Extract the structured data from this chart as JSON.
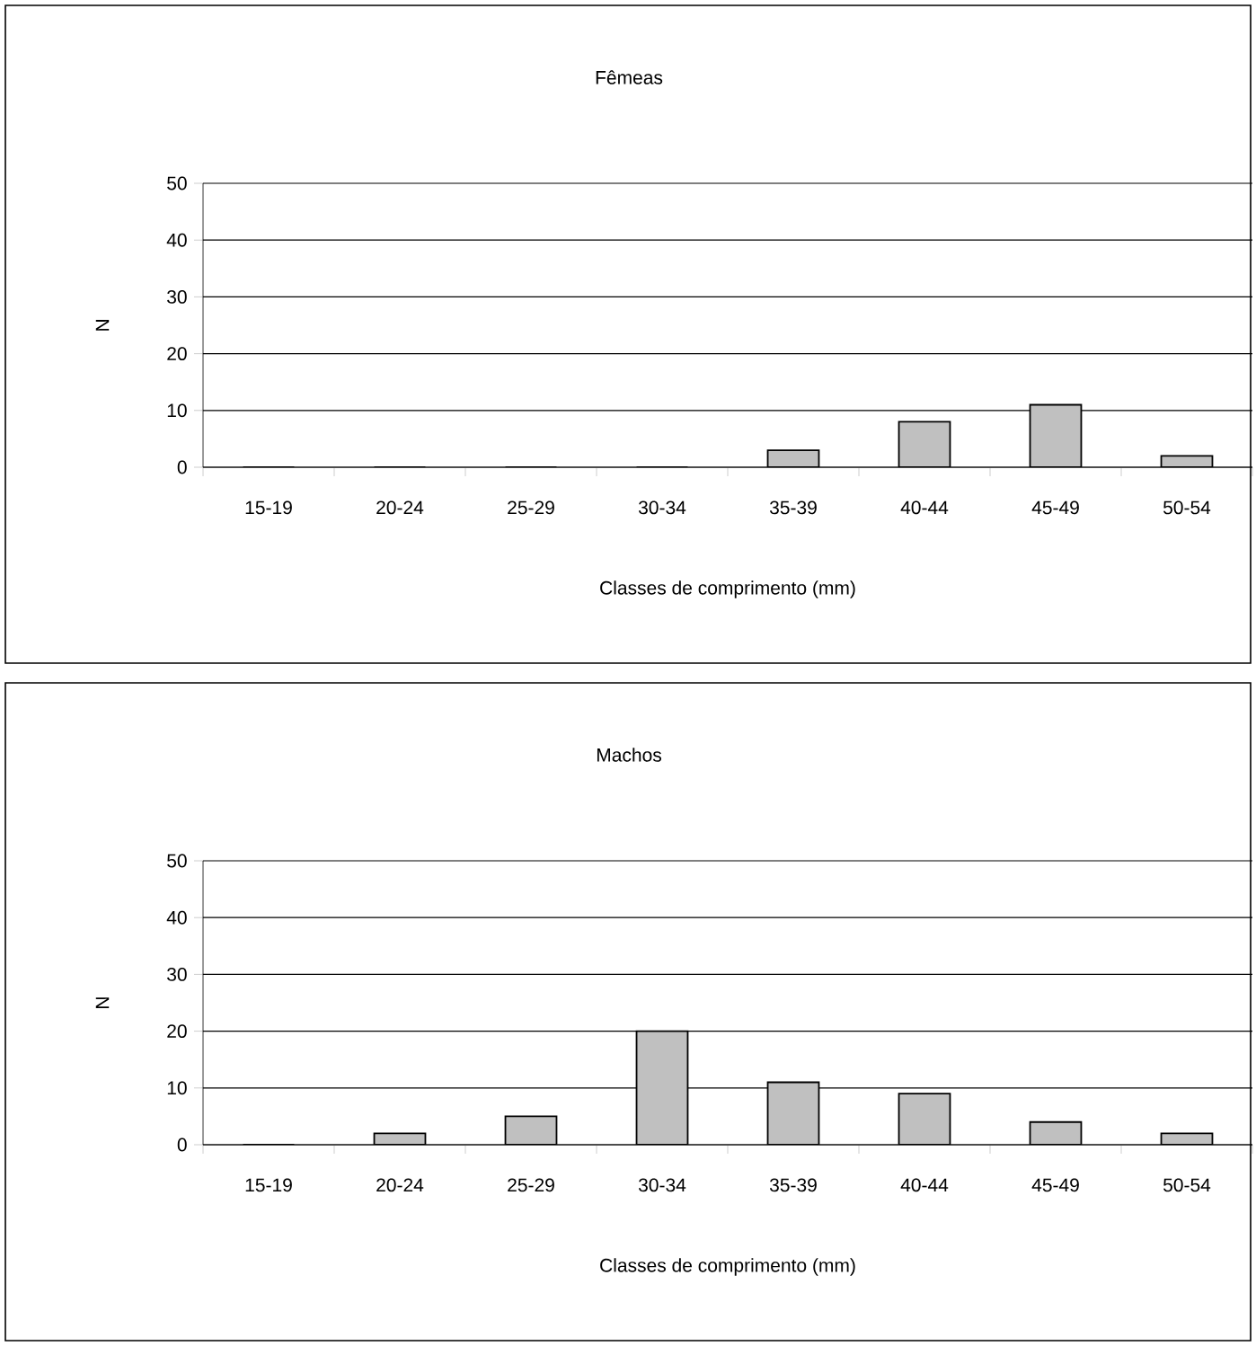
{
  "chart_data": [
    {
      "type": "bar",
      "title": "Fêmeas",
      "xlabel": "Classes de comprimento (mm)",
      "ylabel": "N",
      "categories": [
        "15-19",
        "20-24",
        "25-29",
        "30-34",
        "35-39",
        "40-44",
        "45-49",
        "50-54"
      ],
      "values": [
        0,
        0,
        0,
        0,
        3,
        8,
        11,
        2
      ],
      "color": "#c0c0c0",
      "ylim": [
        0,
        50
      ],
      "yticks": [
        0,
        10,
        20,
        30,
        40,
        50
      ],
      "grid": "y"
    },
    {
      "type": "bar",
      "title": "Machos",
      "xlabel": "Classes de comprimento (mm)",
      "ylabel": "N",
      "categories": [
        "15-19",
        "20-24",
        "25-29",
        "30-34",
        "35-39",
        "40-44",
        "45-49",
        "50-54"
      ],
      "values": [
        0,
        2,
        5,
        20,
        11,
        9,
        4,
        2
      ],
      "color": "#c0c0c0",
      "ylim": [
        0,
        50
      ],
      "yticks": [
        0,
        10,
        20,
        30,
        40,
        50
      ],
      "grid": "y"
    }
  ]
}
